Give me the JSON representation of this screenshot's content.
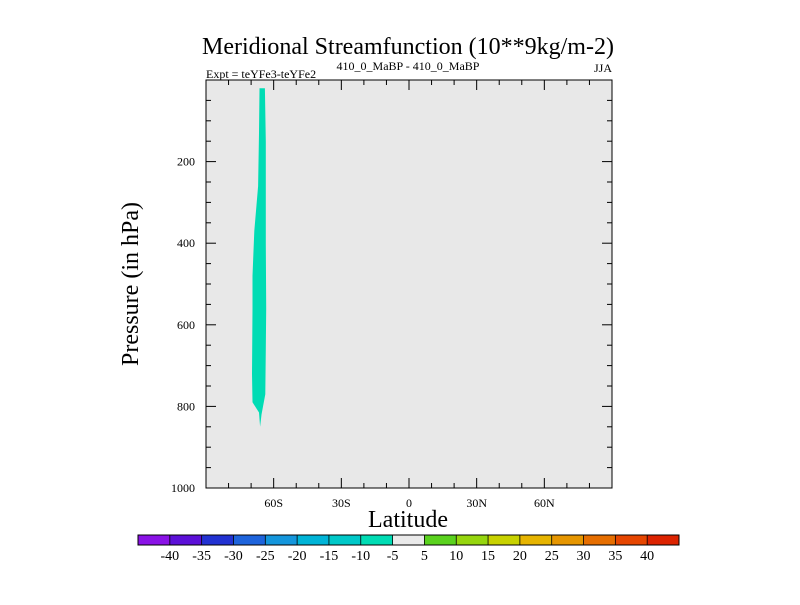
{
  "chart_data": {
    "type": "contour",
    "title": "Meridional Streamfunction (10**9kg/m-2)",
    "subtitle_left": "Expt = teYFe3-teYFe2",
    "subtitle_center": "410_0_MaBP - 410_0_MaBP",
    "subtitle_right": "JJA",
    "xlabel": "Latitude",
    "ylabel": "Pressure (in hPa)",
    "xlim": [
      -90,
      90
    ],
    "ylim": [
      1000,
      0
    ],
    "x_ticks": [
      {
        "value": -60,
        "label": "60S"
      },
      {
        "value": -30,
        "label": "30S"
      },
      {
        "value": 0,
        "label": "0"
      },
      {
        "value": 30,
        "label": "30N"
      },
      {
        "value": 60,
        "label": "60N"
      }
    ],
    "y_ticks": [
      {
        "value": 200,
        "label": "200"
      },
      {
        "value": 400,
        "label": "400"
      },
      {
        "value": 600,
        "label": "600"
      },
      {
        "value": 800,
        "label": "800"
      },
      {
        "value": 1000,
        "label": "1000"
      }
    ],
    "filled_region": {
      "level_range": [
        -10,
        -5
      ],
      "color": "#00dcb4",
      "outline": [
        [
          -66.3,
          20
        ],
        [
          -63.9,
          20
        ],
        [
          -63.5,
          150
        ],
        [
          -63.5,
          400
        ],
        [
          -63.3,
          560
        ],
        [
          -63.5,
          660
        ],
        [
          -63.7,
          770
        ],
        [
          -65.4,
          820
        ],
        [
          -66.0,
          850
        ],
        [
          -66.5,
          815
        ],
        [
          -69.4,
          790
        ],
        [
          -69.6,
          720
        ],
        [
          -69.4,
          560
        ],
        [
          -69.4,
          480
        ],
        [
          -68.6,
          370
        ],
        [
          -66.9,
          260
        ],
        [
          -66.5,
          130
        ]
      ]
    },
    "colorbar": {
      "labels": [
        "-40",
        "-35",
        "-30",
        "-25",
        "-20",
        "-15",
        "-10",
        "-5",
        "5",
        "10",
        "15",
        "20",
        "25",
        "30",
        "35",
        "40"
      ],
      "colors": [
        "#8a12e6",
        "#5c10d8",
        "#2232d2",
        "#1e64dc",
        "#1496dc",
        "#00b4d7",
        "#00c8c8",
        "#00dcb4",
        "#eaeaea",
        "#5ad21e",
        "#96d60e",
        "#c8d200",
        "#e6b400",
        "#e69600",
        "#e66e00",
        "#e64600",
        "#dc2300"
      ]
    },
    "background_color": "#e8e8e8"
  }
}
